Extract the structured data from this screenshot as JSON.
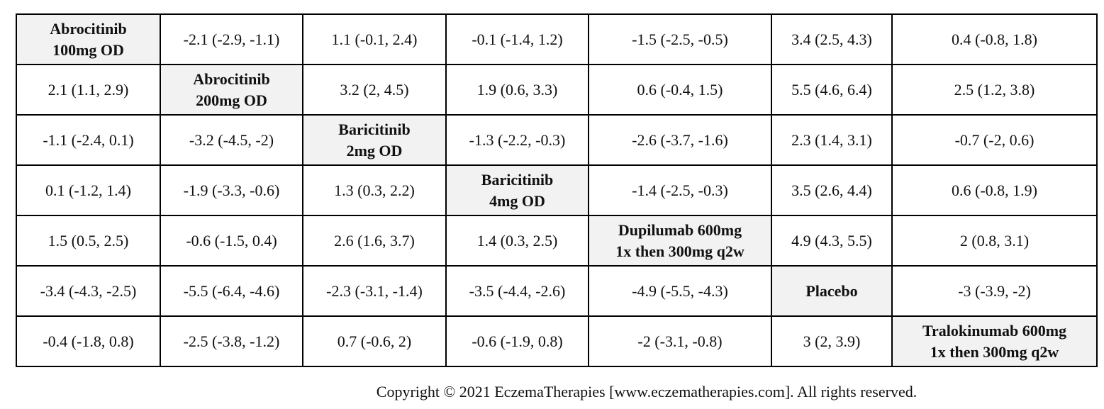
{
  "table": {
    "rows": [
      [
        "Abrocitinib\n100mg OD",
        "-2.1 (-2.9, -1.1)",
        "1.1 (-0.1, 2.4)",
        "-0.1 (-1.4, 1.2)",
        "-1.5 (-2.5, -0.5)",
        "3.4 (2.5, 4.3)",
        "0.4 (-0.8, 1.8)"
      ],
      [
        "2.1 (1.1, 2.9)",
        "Abrocitinib\n200mg OD",
        "3.2 (2, 4.5)",
        "1.9 (0.6, 3.3)",
        "0.6 (-0.4, 1.5)",
        "5.5 (4.6, 6.4)",
        "2.5 (1.2, 3.8)"
      ],
      [
        "-1.1 (-2.4, 0.1)",
        "-3.2 (-4.5, -2)",
        "Baricitinib\n2mg OD",
        "-1.3 (-2.2, -0.3)",
        "-2.6 (-3.7, -1.6)",
        "2.3 (1.4, 3.1)",
        "-0.7 (-2, 0.6)"
      ],
      [
        "0.1 (-1.2, 1.4)",
        "-1.9 (-3.3, -0.6)",
        "1.3 (0.3, 2.2)",
        "Baricitinib\n4mg OD",
        "-1.4 (-2.5, -0.3)",
        "3.5 (2.6, 4.4)",
        "0.6 (-0.8, 1.9)"
      ],
      [
        "1.5 (0.5, 2.5)",
        "-0.6 (-1.5, 0.4)",
        "2.6 (1.6, 3.7)",
        "1.4 (0.3, 2.5)",
        "Dupilumab 600mg\n1x then 300mg q2w",
        "4.9 (4.3, 5.5)",
        "2 (0.8, 3.1)"
      ],
      [
        "-3.4 (-4.3, -2.5)",
        "-5.5 (-6.4, -4.6)",
        "-2.3 (-3.1, -1.4)",
        "-3.5 (-4.4, -2.6)",
        "-4.9 (-5.5, -4.3)",
        "Placebo",
        "-3 (-3.9, -2)"
      ],
      [
        "-0.4 (-1.8, 0.8)",
        "-2.5 (-3.8, -1.2)",
        "0.7 (-0.6, 2)",
        "-0.6 (-1.9, 0.8)",
        "-2 (-3.1, -0.8)",
        "3 (2, 3.9)",
        "Tralokinumab 600mg\n1x then 300mg q2w"
      ]
    ]
  },
  "footer": {
    "copyright": "Copyright © 2021 EczemaTherapies [www.eczematherapies.com]. All rights reserved."
  }
}
